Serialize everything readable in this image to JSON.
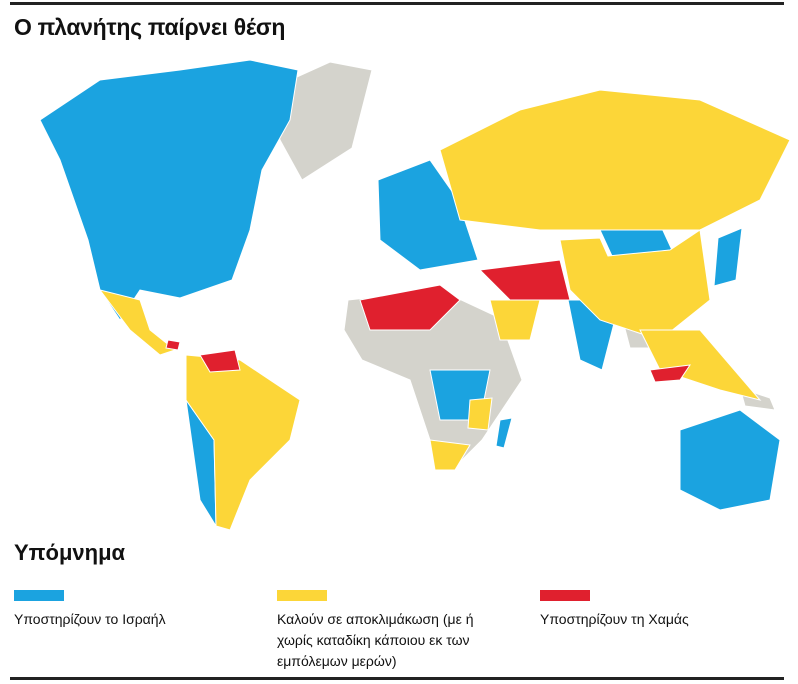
{
  "header": {
    "title": "Ο πλανήτης παίρνει θέση"
  },
  "legend": {
    "title": "Υπόμνημα",
    "items": [
      {
        "label": "Υποστηρίζουν το Ισραήλ",
        "color": "#1ba3e0"
      },
      {
        "label": "Καλούν σε αποκλιμάκωση (με ή χωρίς καταδίκη κάποιου εκ των εμπόλεμων μερών)",
        "color": "#fcd638"
      },
      {
        "label": "Υποστηρίζουν τη Χαμάς",
        "color": "#e0202e"
      }
    ]
  }
}
